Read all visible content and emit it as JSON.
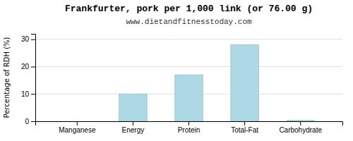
{
  "chart_data": {
    "type": "bar",
    "title": "Frankfurter, pork per 1,000 link (or 76.00 g)",
    "subtitle": "www.dietandfitnesstoday.com",
    "ylabel": "Percentage of RDH (%)",
    "categories": [
      "Manganese",
      "Energy",
      "Protein",
      "Total-Fat",
      "Carbohydrate"
    ],
    "values": [
      0.0,
      10.0,
      17.0,
      28.0,
      0.3
    ],
    "color": "#add8e6",
    "ylim": [
      0,
      32
    ],
    "yticks": [
      0,
      10,
      20,
      30
    ],
    "grid": true
  }
}
